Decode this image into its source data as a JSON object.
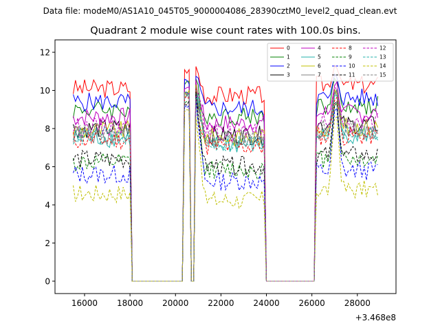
{
  "suptitle": "Data file: modeM0/AS1A10_045T05_9000004086_28390cztM0_level2_quad_clean.evt",
  "chart_data": {
    "type": "line",
    "title": "Quadrant 2 module wise count rates with 100.0s bins.",
    "xlabel": "",
    "ylabel": "",
    "offset_label": "+3.468e8",
    "xlim": [
      14700,
      29700
    ],
    "ylim": [
      -0.65,
      12.65
    ],
    "xticks": [
      16000,
      18000,
      20000,
      22000,
      24000,
      26000,
      28000
    ],
    "yticks": [
      0,
      2,
      4,
      6,
      8,
      10,
      12
    ],
    "xtick_labels": [
      "16000",
      "18000",
      "20000",
      "22000",
      "24000",
      "26000",
      "28000"
    ],
    "ytick_labels": [
      "0",
      "2",
      "4",
      "6",
      "8",
      "10",
      "12"
    ],
    "legend_position": "top-right",
    "segments": [
      {
        "start": 15500,
        "end": 18000
      },
      {
        "start": 20400,
        "end": 20600
      },
      {
        "start": 20900,
        "end": 23900
      },
      {
        "start": 26200,
        "end": 28900
      }
    ],
    "series": [
      {
        "name": "0",
        "color": "#ff0000",
        "style": "solid",
        "level": 10.1,
        "peak": 11.6
      },
      {
        "name": "1",
        "color": "#008000",
        "style": "solid",
        "level": 9.0,
        "peak": 10.9
      },
      {
        "name": "2",
        "color": "#0000ff",
        "style": "solid",
        "level": 9.4,
        "peak": 11.0
      },
      {
        "name": "3",
        "color": "#000000",
        "style": "solid",
        "level": 8.0,
        "peak": 10.4
      },
      {
        "name": "4",
        "color": "#bf00bf",
        "style": "solid",
        "level": 8.6,
        "peak": 10.7
      },
      {
        "name": "5",
        "color": "#20b2aa",
        "style": "solid",
        "level": 7.5,
        "peak": 10.3
      },
      {
        "name": "6",
        "color": "#bfbf00",
        "style": "solid",
        "level": 7.9,
        "peak": 10.4
      },
      {
        "name": "7",
        "color": "#808080",
        "style": "solid",
        "level": 7.7,
        "peak": 10.2
      },
      {
        "name": "8",
        "color": "#ff0000",
        "style": "dashed",
        "level": 7.4,
        "peak": 10.1
      },
      {
        "name": "9",
        "color": "#008000",
        "style": "dashed",
        "level": 6.2,
        "peak": 9.9
      },
      {
        "name": "10",
        "color": "#0000ff",
        "style": "dashed",
        "level": 5.6,
        "peak": 9.6
      },
      {
        "name": "11",
        "color": "#000000",
        "style": "dashed",
        "level": 6.4,
        "peak": 9.8
      },
      {
        "name": "12",
        "color": "#bf00bf",
        "style": "dashed",
        "level": 8.1,
        "peak": 10.5
      },
      {
        "name": "13",
        "color": "#20b2aa",
        "style": "dashed",
        "level": 7.6,
        "peak": 10.3
      },
      {
        "name": "14",
        "color": "#bfbf00",
        "style": "dashed",
        "level": 4.6,
        "peak": 9.4
      },
      {
        "name": "15",
        "color": "#808080",
        "style": "dashed",
        "level": 7.8,
        "peak": 10.3
      }
    ]
  }
}
